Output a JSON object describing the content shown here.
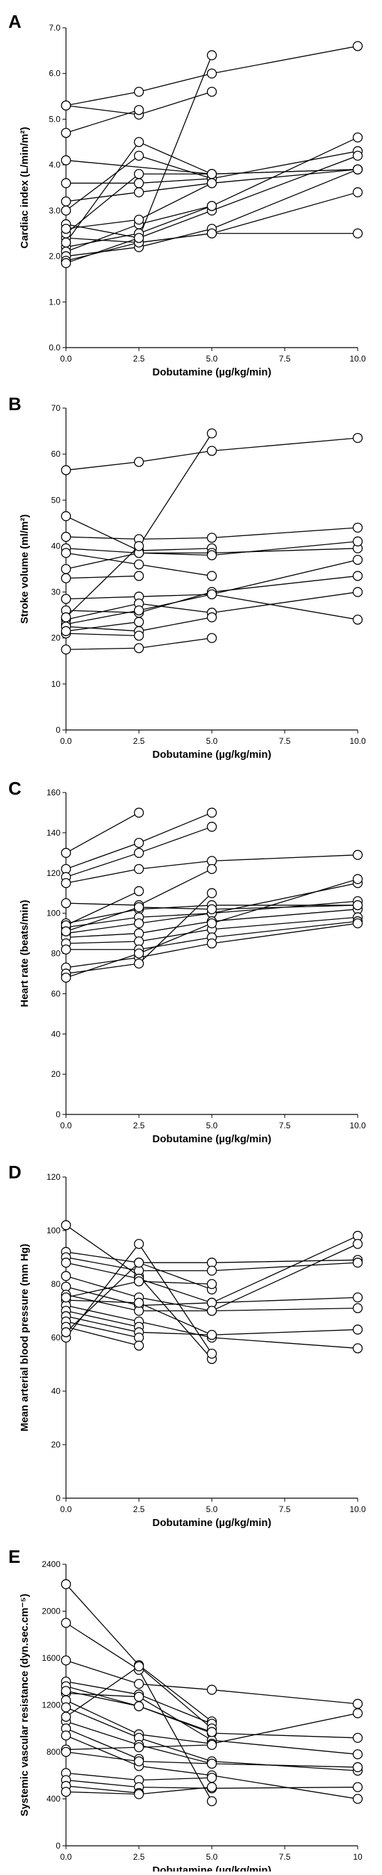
{
  "chart_data": [
    {
      "panel": "A",
      "type": "line",
      "xlabel": "Dobutamine (µg/kg/min)",
      "ylabel": "Cardiac index (L/min/m²)",
      "xlim": [
        0,
        10
      ],
      "ylim": [
        0,
        7
      ],
      "xticks": [
        0,
        2.5,
        5,
        7.5,
        10
      ],
      "xtick_labels": [
        "0.0",
        "2.5",
        "5.0",
        "7.5",
        "10.0"
      ],
      "yticks": [
        0,
        1,
        2,
        3,
        4,
        5,
        6,
        7
      ],
      "ytick_labels": [
        "0.0",
        "1.0",
        "2.0",
        "3.0",
        "4.0",
        "5.0",
        "6.0",
        "7.0"
      ],
      "grid": false,
      "series": [
        {
          "x": [
            0,
            2.5,
            5,
            10
          ],
          "y": [
            5.3,
            5.6,
            6.0,
            6.6
          ]
        },
        {
          "x": [
            0,
            2.5,
            5
          ],
          "y": [
            5.3,
            5.1,
            5.6
          ]
        },
        {
          "x": [
            0,
            2.5
          ],
          "y": [
            4.7,
            5.2
          ]
        },
        {
          "x": [
            0,
            5,
            10
          ],
          "y": [
            4.1,
            3.8,
            3.9
          ]
        },
        {
          "x": [
            0,
            2.5,
            5,
            10
          ],
          "y": [
            3.6,
            3.6,
            3.7,
            4.3
          ]
        },
        {
          "x": [
            0,
            2.5,
            5
          ],
          "y": [
            3.2,
            3.4,
            3.6
          ]
        },
        {
          "x": [
            0,
            2.5,
            5,
            10
          ],
          "y": [
            2.7,
            2.4,
            3.0,
            4.2
          ]
        },
        {
          "x": [
            0,
            2.5,
            5,
            10
          ],
          "y": [
            2.4,
            2.3,
            2.5,
            3.4
          ]
        },
        {
          "x": [
            0,
            2.5,
            5,
            10
          ],
          "y": [
            2.2,
            2.5,
            3.1,
            4.6
          ]
        },
        {
          "x": [
            0,
            2.5,
            5
          ],
          "y": [
            2.1,
            2.7,
            3.1
          ]
        },
        {
          "x": [
            0,
            2.5,
            5,
            10
          ],
          "y": [
            2.0,
            2.2,
            2.6,
            3.9
          ]
        },
        {
          "x": [
            0,
            2.5,
            5,
            10
          ],
          "y": [
            1.9,
            2.3,
            2.5,
            2.5
          ]
        },
        {
          "x": [
            0,
            2.5,
            5
          ],
          "y": [
            1.85,
            2.4,
            6.4
          ]
        },
        {
          "x": [
            0,
            2.5,
            5
          ],
          "y": [
            2.3,
            4.5,
            3.8
          ]
        },
        {
          "x": [
            0,
            2.5,
            5
          ],
          "y": [
            3.0,
            4.2,
            3.7
          ]
        },
        {
          "x": [
            0,
            2.5,
            5,
            10
          ],
          "y": [
            2.5,
            3.8,
            3.8,
            3.9
          ]
        },
        {
          "x": [
            0,
            2.5,
            5,
            10
          ],
          "y": [
            2.6,
            2.8,
            3.6,
            3.9
          ]
        }
      ]
    },
    {
      "panel": "B",
      "type": "line",
      "xlabel": "Dobutamine (µg/kg/min)",
      "ylabel": "Stroke volume (ml/m²)",
      "xlim": [
        0,
        10
      ],
      "ylim": [
        0,
        70
      ],
      "xticks": [
        0,
        2.5,
        5,
        7.5,
        10
      ],
      "xtick_labels": [
        "0.0",
        "2.5",
        "5.0",
        "7.5",
        "10.0"
      ],
      "yticks": [
        0,
        10,
        20,
        30,
        40,
        50,
        60,
        70
      ],
      "ytick_labels": [
        "0",
        "10",
        "20",
        "30",
        "40",
        "50",
        "60",
        "70"
      ],
      "grid": false,
      "series": [
        {
          "x": [
            0,
            2.5,
            5,
            10
          ],
          "y": [
            56.5,
            58.3,
            60.7,
            63.5
          ]
        },
        {
          "x": [
            0,
            2.5,
            5
          ],
          "y": [
            46.5,
            39.0,
            39.5
          ]
        },
        {
          "x": [
            0,
            2.5,
            5,
            10
          ],
          "y": [
            42.0,
            41.5,
            41.8,
            44.0
          ]
        },
        {
          "x": [
            0,
            2.5,
            5,
            10
          ],
          "y": [
            39.5,
            38.5,
            38.5,
            39.5
          ]
        },
        {
          "x": [
            0,
            2.5,
            5
          ],
          "y": [
            38.5,
            36.0,
            33.5
          ]
        },
        {
          "x": [
            0,
            2.5,
            5,
            10
          ],
          "y": [
            35.0,
            38.5,
            38.0,
            41.0
          ]
        },
        {
          "x": [
            0,
            2.5
          ],
          "y": [
            33.0,
            33.5
          ]
        },
        {
          "x": [
            0,
            2.5,
            5,
            10
          ],
          "y": [
            28.5,
            29.0,
            29.5,
            37.0
          ]
        },
        {
          "x": [
            0,
            2.5,
            5,
            10
          ],
          "y": [
            26.0,
            25.5,
            30.0,
            33.5
          ]
        },
        {
          "x": [
            0,
            2.5,
            5,
            10
          ],
          "y": [
            24.0,
            27.5,
            25.5,
            30.0
          ]
        },
        {
          "x": [
            0,
            2.5,
            5,
            10
          ],
          "y": [
            23.0,
            26.0,
            29.5,
            24.0
          ]
        },
        {
          "x": [
            0,
            2.5,
            5
          ],
          "y": [
            22.5,
            21.5,
            24.5
          ]
        },
        {
          "x": [
            0,
            2.5
          ],
          "y": [
            21.0,
            20.5
          ]
        },
        {
          "x": [
            0,
            2.5,
            5
          ],
          "y": [
            17.5,
            17.8,
            20.0
          ]
        },
        {
          "x": [
            0,
            2.5,
            5
          ],
          "y": [
            24.5,
            40.0,
            64.5
          ]
        },
        {
          "x": [
            0,
            2.5
          ],
          "y": [
            21.5,
            23.5
          ]
        }
      ]
    },
    {
      "panel": "C",
      "type": "line",
      "xlabel": "Dobutamine (µg/kg/min)",
      "ylabel": "Heart rate (beats/min)",
      "xlim": [
        0,
        10
      ],
      "ylim": [
        0,
        160
      ],
      "xticks": [
        0,
        2.5,
        5,
        7.5,
        10
      ],
      "xtick_labels": [
        "0.0",
        "2.5",
        "5.0",
        "7.5",
        "10.0"
      ],
      "yticks": [
        0,
        20,
        40,
        60,
        80,
        100,
        120,
        140,
        160
      ],
      "ytick_labels": [
        "0",
        "20",
        "40",
        "60",
        "80",
        "100",
        "120",
        "140",
        "160"
      ],
      "grid": false,
      "series": [
        {
          "x": [
            0,
            2.5
          ],
          "y": [
            130,
            150
          ]
        },
        {
          "x": [
            0,
            2.5,
            5
          ],
          "y": [
            122,
            135,
            150
          ]
        },
        {
          "x": [
            0,
            2.5,
            5
          ],
          "y": [
            118,
            130,
            143
          ]
        },
        {
          "x": [
            0,
            2.5,
            5,
            10
          ],
          "y": [
            115,
            122,
            126,
            129
          ]
        },
        {
          "x": [
            0,
            2.5,
            5
          ],
          "y": [
            105,
            104,
            122
          ]
        },
        {
          "x": [
            0,
            2.5,
            5,
            10
          ],
          "y": [
            95,
            102,
            104,
            104
          ]
        },
        {
          "x": [
            0,
            2.5,
            5,
            10
          ],
          "y": [
            93,
            98,
            100,
            106
          ]
        },
        {
          "x": [
            0,
            2.5,
            5,
            10
          ],
          "y": [
            90,
            95,
            100,
            115
          ]
        },
        {
          "x": [
            0,
            2.5,
            5,
            10
          ],
          "y": [
            88,
            90,
            96,
            102
          ]
        },
        {
          "x": [
            0,
            2.5,
            5,
            10
          ],
          "y": [
            85,
            86,
            92,
            98
          ]
        },
        {
          "x": [
            0,
            2.5,
            5,
            10
          ],
          "y": [
            82,
            82,
            88,
            96
          ]
        },
        {
          "x": [
            0,
            2.5,
            5,
            10
          ],
          "y": [
            73,
            78,
            85,
            95
          ]
        },
        {
          "x": [
            0,
            2.5,
            5
          ],
          "y": [
            70,
            75,
            110
          ]
        },
        {
          "x": [
            0,
            2.5,
            5,
            10
          ],
          "y": [
            68,
            80,
            95,
            117
          ]
        },
        {
          "x": [
            0,
            2.5
          ],
          "y": [
            94,
            111
          ]
        },
        {
          "x": [
            0,
            2.5,
            5,
            10
          ],
          "y": [
            91,
            103,
            102,
            104
          ]
        }
      ]
    },
    {
      "panel": "D",
      "type": "line",
      "xlabel": "Dobutamine (µg/kg/min)",
      "ylabel": "Mean arterial blood pressure (mm Hg)",
      "xlim": [
        0,
        10
      ],
      "ylim": [
        0,
        120
      ],
      "xticks": [
        0,
        2.5,
        5,
        7.5,
        10
      ],
      "xtick_labels": [
        "0.0",
        "2.5",
        "5.0",
        "7.5",
        "10.0"
      ],
      "yticks": [
        0,
        20,
        40,
        60,
        80,
        100,
        120
      ],
      "ytick_labels": [
        "0",
        "20",
        "40",
        "60",
        "80",
        "100",
        "120"
      ],
      "grid": false,
      "series": [
        {
          "x": [
            0,
            2.5,
            5
          ],
          "y": [
            102,
            83,
            52
          ]
        },
        {
          "x": [
            0,
            2.5,
            5,
            10
          ],
          "y": [
            92,
            88,
            88,
            89
          ]
        },
        {
          "x": [
            0,
            2.5,
            5,
            10
          ],
          "y": [
            90,
            85,
            85,
            88
          ]
        },
        {
          "x": [
            0,
            2.5,
            5,
            10
          ],
          "y": [
            88,
            82,
            73,
            98
          ]
        },
        {
          "x": [
            0,
            2.5,
            5,
            10
          ],
          "y": [
            83,
            75,
            70,
            71
          ]
        },
        {
          "x": [
            0,
            2.5,
            5,
            10
          ],
          "y": [
            79,
            72,
            73,
            75
          ]
        },
        {
          "x": [
            0,
            2.5,
            5,
            10
          ],
          "y": [
            76,
            70,
            70,
            95
          ]
        },
        {
          "x": [
            0,
            2.5,
            5
          ],
          "y": [
            74,
            73,
            61
          ]
        },
        {
          "x": [
            0,
            2.5,
            5,
            10
          ],
          "y": [
            72,
            66,
            60,
            56
          ]
        },
        {
          "x": [
            0,
            2.5
          ],
          "y": [
            70,
            64
          ]
        },
        {
          "x": [
            0,
            2.5,
            5,
            10
          ],
          "y": [
            68,
            62,
            61,
            63
          ]
        },
        {
          "x": [
            0,
            2.5
          ],
          "y": [
            66,
            60
          ]
        },
        {
          "x": [
            0,
            2.5
          ],
          "y": [
            64,
            57
          ]
        },
        {
          "x": [
            0,
            2.5,
            5
          ],
          "y": [
            60,
            95,
            54
          ]
        },
        {
          "x": [
            0,
            2.5,
            5
          ],
          "y": [
            62,
            88,
            78
          ]
        },
        {
          "x": [
            0,
            2.5,
            5
          ],
          "y": [
            75,
            81,
            80
          ]
        }
      ]
    },
    {
      "panel": "E",
      "type": "line",
      "xlabel": "Dobutamine (µg/kg/min)",
      "ylabel": "Systemic vascular resistance (dyn.sec.cm⁻⁵)",
      "xlim": [
        0,
        10
      ],
      "ylim": [
        0,
        2400
      ],
      "xticks": [
        0,
        2.5,
        5,
        7.5,
        10
      ],
      "xtick_labels": [
        "0.0",
        "2.5",
        "5.0",
        "7.5",
        "10"
      ],
      "yticks": [
        0,
        400,
        800,
        1200,
        1600,
        2000,
        2400
      ],
      "ytick_labels": [
        "0",
        "400",
        "800",
        "1200",
        "1600",
        "2000",
        "2400"
      ],
      "grid": false,
      "series": [
        {
          "x": [
            0,
            2.5,
            5
          ],
          "y": [
            2230,
            1540,
            1060
          ]
        },
        {
          "x": [
            0,
            2.5,
            5
          ],
          "y": [
            1900,
            1500,
            380
          ]
        },
        {
          "x": [
            0,
            2.5,
            5,
            10
          ],
          "y": [
            1580,
            1380,
            1330,
            1210
          ]
        },
        {
          "x": [
            0,
            2.5,
            5
          ],
          "y": [
            1400,
            1290,
            1040
          ]
        },
        {
          "x": [
            0,
            2.5,
            5,
            10
          ],
          "y": [
            1360,
            1190,
            960,
            920
          ]
        },
        {
          "x": [
            0,
            2.5,
            5,
            10
          ],
          "y": [
            1300,
            1270,
            900,
            780
          ]
        },
        {
          "x": [
            0,
            2.5,
            5,
            10
          ],
          "y": [
            1240,
            950,
            870,
            1130
          ]
        },
        {
          "x": [
            0,
            2.5,
            5,
            10
          ],
          "y": [
            1180,
            920,
            720,
            640
          ]
        },
        {
          "x": [
            0,
            2.5,
            5,
            10
          ],
          "y": [
            1060,
            860,
            700,
            670
          ]
        },
        {
          "x": [
            0,
            2.5
          ],
          "y": [
            1000,
            740
          ]
        },
        {
          "x": [
            0,
            2.5,
            5,
            10
          ],
          "y": [
            940,
            680,
            600,
            400
          ]
        },
        {
          "x": [
            0,
            2.5,
            5
          ],
          "y": [
            820,
            840,
            860
          ]
        },
        {
          "x": [
            0,
            2.5,
            5
          ],
          "y": [
            800,
            720,
            700
          ]
        },
        {
          "x": [
            0,
            2.5,
            5
          ],
          "y": [
            620,
            560,
            580
          ]
        },
        {
          "x": [
            0,
            2.5,
            5,
            10
          ],
          "y": [
            560,
            500,
            490,
            500
          ]
        },
        {
          "x": [
            0,
            2.5
          ],
          "y": [
            510,
            450
          ]
        },
        {
          "x": [
            0,
            2.5,
            5
          ],
          "y": [
            460,
            440,
            500
          ]
        },
        {
          "x": [
            0,
            2.5,
            5
          ],
          "y": [
            1100,
            1530,
            1000
          ]
        },
        {
          "x": [
            0,
            2.5,
            5
          ],
          "y": [
            1320,
            1190,
            970
          ]
        }
      ]
    }
  ]
}
